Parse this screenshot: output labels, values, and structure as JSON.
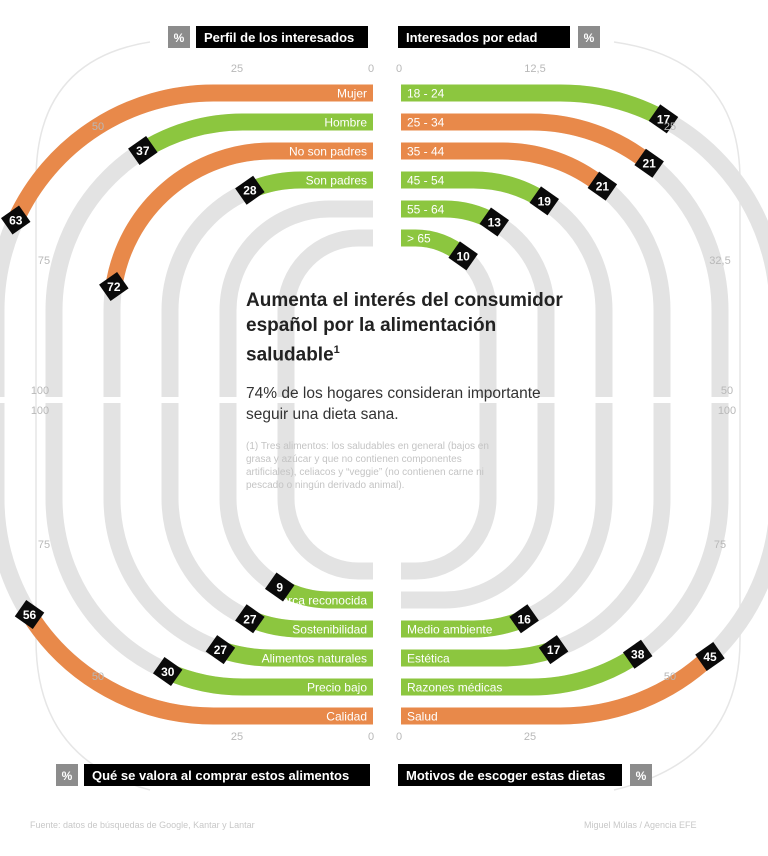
{
  "colors": {
    "green": "#8cc63f",
    "orange": "#e8894a",
    "track": "#e3e3e3",
    "label_bg": "#0a0a0a",
    "box_grey": "#8c8c8c"
  },
  "center": {
    "title": "Aumenta el interés del consumidor español por la alimentación saludable",
    "title_sup": "1",
    "subtitle": "74% de los hogares consideran importante seguir una dieta sana.",
    "note": "(1) Tres alimentos: los saludables en general (bajos en grasa y azúcar y que no contienen componentes artificiales), celiacos y “veggie” (no contienen carne ni pescado o ningún derivado animal)."
  },
  "footer": {
    "source": "Fuente: datos de búsquedas de Google, Kantar y Lantar",
    "credit": "Miguel Múlas / Agencia EFE"
  },
  "chart_data": [
    {
      "type": "bar",
      "title": "Perfil de los interesados",
      "unit_box": "%",
      "categories": [
        "Mujer",
        "Hombre",
        "No son padres",
        "Son padres"
      ],
      "values": [
        63,
        37,
        72,
        28
      ],
      "colors": [
        "orange",
        "green",
        "orange",
        "green"
      ],
      "ticks": [
        "0",
        "25",
        "50",
        "75",
        "100"
      ]
    },
    {
      "type": "bar",
      "title": "Interesados por edad",
      "unit_box": "%",
      "categories": [
        "18 - 24",
        "25 - 34",
        "35 - 44",
        "45 - 54",
        "55 - 64",
        "> 65"
      ],
      "values": [
        17,
        21,
        21,
        19,
        13,
        10
      ],
      "colors": [
        "green",
        "orange",
        "orange",
        "green",
        "green",
        "green"
      ],
      "ticks": [
        "0",
        "12,5",
        "25",
        "32,5",
        "50",
        "100"
      ]
    },
    {
      "type": "bar",
      "title": "Qué se valora al comprar estos alimentos",
      "unit_box": "%",
      "categories": [
        "Marca reconocida",
        "Sostenibilidad",
        "Alimentos naturales",
        "Precio bajo",
        "Calidad"
      ],
      "values": [
        9,
        27,
        27,
        30,
        56
      ],
      "colors": [
        "green",
        "green",
        "green",
        "green",
        "orange"
      ],
      "ticks": [
        "0",
        "25",
        "50",
        "75",
        "100"
      ]
    },
    {
      "type": "bar",
      "title": "Motivos de escoger estas dietas",
      "unit_box": "%",
      "categories": [
        "Medio ambiente",
        "Estética",
        "Razones médicas",
        "Salud"
      ],
      "values": [
        16,
        17,
        38,
        45
      ],
      "colors": [
        "green",
        "green",
        "green",
        "orange"
      ],
      "ticks": [
        "0",
        "25",
        "50",
        "75",
        "100"
      ]
    }
  ]
}
